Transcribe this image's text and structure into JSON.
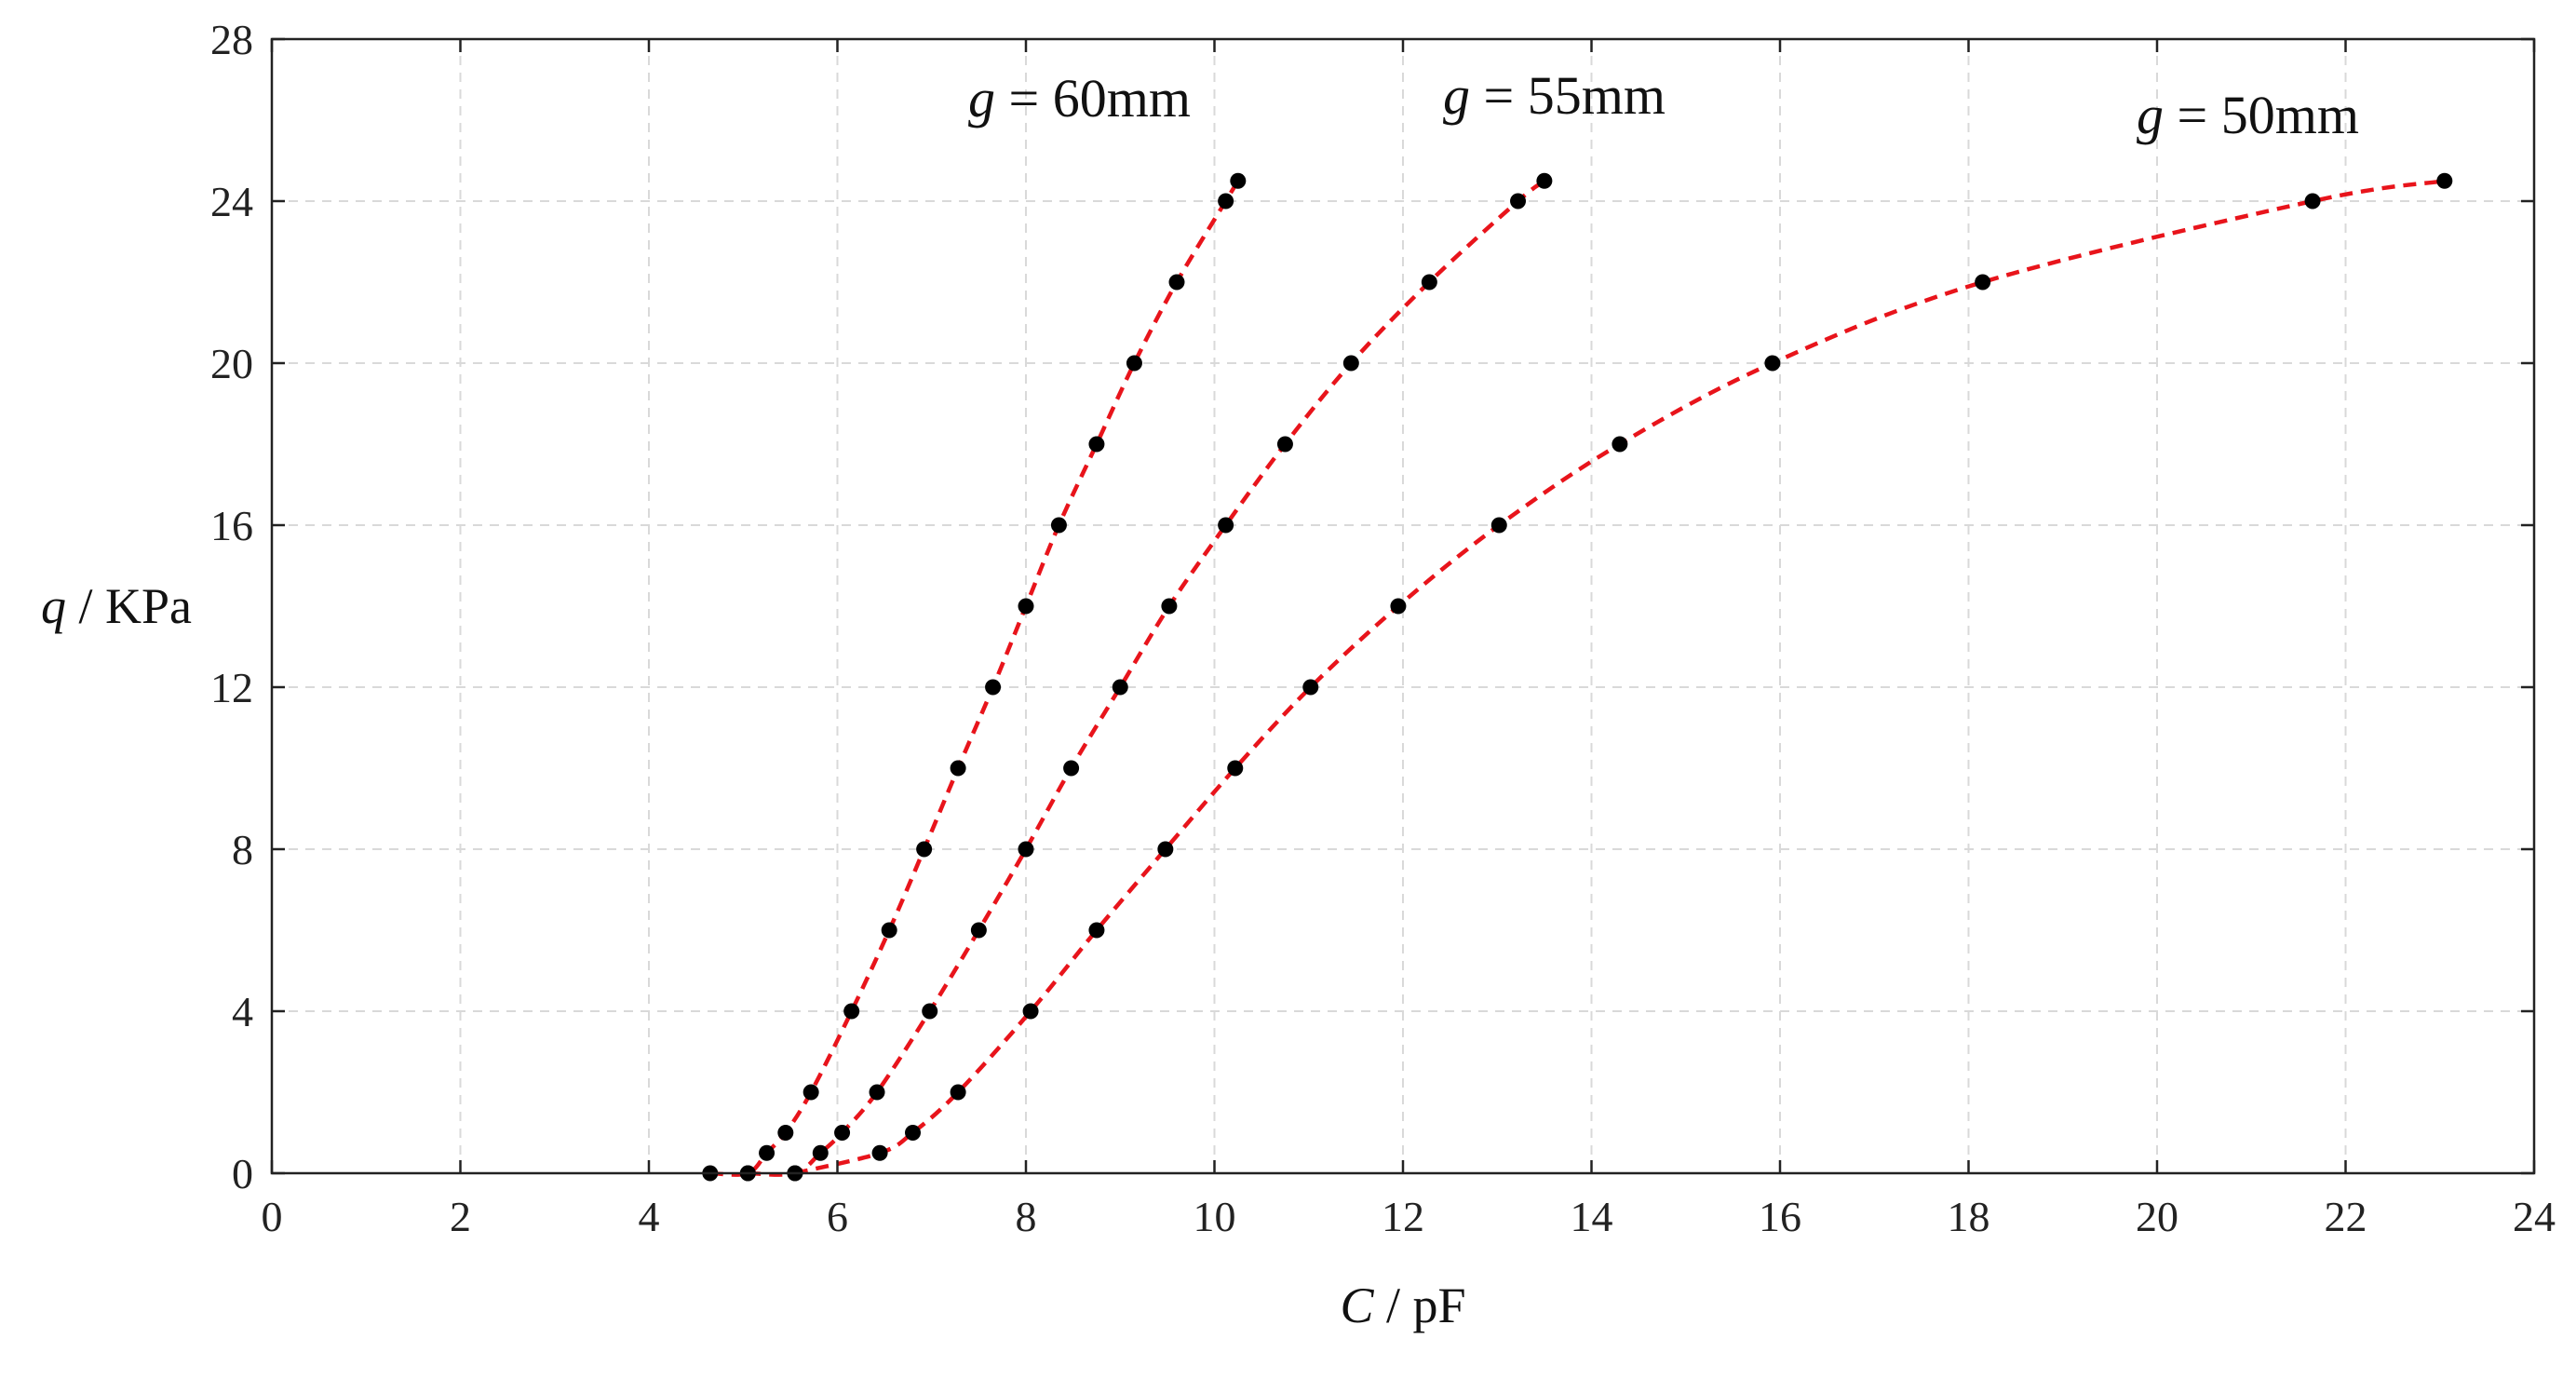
{
  "chart_data": {
    "type": "scatter",
    "title": "",
    "xlabel": {
      "var": "C",
      "unit": "pF"
    },
    "ylabel": {
      "var": "q",
      "unit": "KPa"
    },
    "xlim": [
      0,
      24
    ],
    "ylim": [
      0,
      28
    ],
    "xticks": [
      "0",
      "2",
      "4",
      "6",
      "8",
      "10",
      "12",
      "14",
      "16",
      "18",
      "20",
      "22",
      "24"
    ],
    "yticks": [
      "0",
      "4",
      "8",
      "12",
      "16",
      "20",
      "24",
      "28"
    ],
    "grid": true,
    "fit_color": "#e8141b",
    "marker_color": "#000000",
    "series": [
      {
        "name": "g = 60mm",
        "label": {
          "var": "g",
          "eq": " = ",
          "value": "60mm"
        },
        "x": [
          4.65,
          5.05,
          5.25,
          5.45,
          5.72,
          6.15,
          6.55,
          6.92,
          7.28,
          7.65,
          8.0,
          8.35,
          8.75,
          9.15,
          9.6,
          10.12,
          10.25
        ],
        "y": [
          0,
          0,
          0.5,
          1,
          2,
          4,
          6,
          8,
          10,
          12,
          14,
          16,
          18,
          20,
          22,
          24,
          24.5
        ]
      },
      {
        "name": "g = 55mm",
        "label": {
          "var": "g",
          "eq": " = ",
          "value": "55mm"
        },
        "x": [
          5.05,
          5.55,
          5.82,
          6.05,
          6.42,
          6.98,
          7.5,
          8.0,
          8.48,
          9.0,
          9.52,
          10.12,
          10.75,
          11.45,
          12.28,
          13.22,
          13.5
        ],
        "y": [
          0,
          0,
          0.5,
          1,
          2,
          4,
          6,
          8,
          10,
          12,
          14,
          16,
          18,
          20,
          22,
          24,
          24.5
        ]
      },
      {
        "name": "g = 50mm",
        "label": {
          "var": "g",
          "eq": " = ",
          "value": "50mm"
        },
        "x": [
          5.55,
          6.45,
          6.8,
          7.28,
          8.05,
          8.75,
          9.48,
          10.22,
          11.02,
          11.95,
          13.02,
          14.3,
          15.92,
          18.15,
          21.65,
          23.05
        ],
        "y": [
          0,
          0.5,
          1,
          2,
          4,
          6,
          8,
          10,
          12,
          14,
          16,
          18,
          20,
          22,
          24,
          24.5
        ]
      }
    ]
  }
}
